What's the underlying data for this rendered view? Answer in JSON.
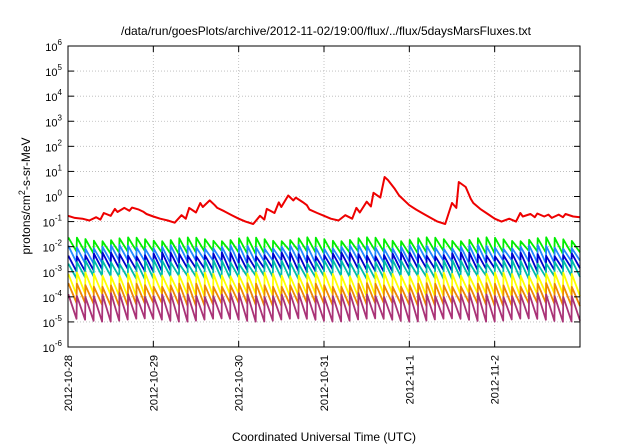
{
  "chart_data": {
    "type": "line",
    "title": "/data/run/goesPlots/archive/2012-11-02/19:00/flux/../flux/5daysMarsFluxes.txt",
    "xlabel": "Coordinated Universal Time (UTC)",
    "ylabel_prefix": "protons/cm",
    "ylabel_sup": "2",
    "ylabel_suffix": "-s-sr-MeV",
    "y_scale": "log",
    "ylim": [
      1e-06,
      1000000.0
    ],
    "xlim": [
      0,
      6
    ],
    "grid": true,
    "y_ticks": [
      {
        "base": "10",
        "exp": "-6",
        "value": 1e-06
      },
      {
        "base": "10",
        "exp": "-5",
        "value": 1e-05
      },
      {
        "base": "10",
        "exp": "-4",
        "value": 0.0001
      },
      {
        "base": "10",
        "exp": "-3",
        "value": 0.001
      },
      {
        "base": "10",
        "exp": "-2",
        "value": 0.01
      },
      {
        "base": "10",
        "exp": "-1",
        "value": 0.1
      },
      {
        "base": "10",
        "exp": "0",
        "value": 1
      },
      {
        "base": "10",
        "exp": "1",
        "value": 10
      },
      {
        "base": "10",
        "exp": "2",
        "value": 100
      },
      {
        "base": "10",
        "exp": "3",
        "value": 1000
      },
      {
        "base": "10",
        "exp": "4",
        "value": 10000
      },
      {
        "base": "10",
        "exp": "5",
        "value": 100000
      },
      {
        "base": "10",
        "exp": "6",
        "value": 1000000
      }
    ],
    "x_ticks": [
      {
        "label": "2012-10-28",
        "value": 0
      },
      {
        "label": "2012-10-29",
        "value": 1
      },
      {
        "label": "2012-10-30",
        "value": 2
      },
      {
        "label": "2012-10-31",
        "value": 3
      },
      {
        "label": "2012-11-1",
        "value": 4
      },
      {
        "label": "2012-11-2",
        "value": 5
      }
    ],
    "series": [
      {
        "color": "#ee0000",
        "x": [
          0.0,
          0.08,
          0.17,
          0.25,
          0.33,
          0.38,
          0.42,
          0.5,
          0.55,
          0.58,
          0.66,
          0.72,
          0.75,
          0.83,
          0.88,
          0.92,
          1.0,
          1.08,
          1.17,
          1.25,
          1.33,
          1.38,
          1.42,
          1.5,
          1.55,
          1.58,
          1.66,
          1.72,
          1.75,
          1.83,
          1.92,
          2.0,
          2.08,
          2.17,
          2.25,
          2.3,
          2.33,
          2.42,
          2.47,
          2.5,
          2.58,
          2.64,
          2.67,
          2.75,
          2.8,
          2.83,
          2.92,
          3.0,
          3.08,
          3.17,
          3.25,
          3.33,
          3.38,
          3.42,
          3.5,
          3.55,
          3.58,
          3.66,
          3.71,
          3.75,
          3.83,
          3.88,
          4.0,
          4.08,
          4.17,
          4.25,
          4.33,
          4.42,
          4.5,
          4.55,
          4.58,
          4.66,
          4.72,
          4.75,
          4.83,
          4.92,
          5.0,
          5.08,
          5.17,
          5.25,
          5.3,
          5.33,
          5.42,
          5.47,
          5.5,
          5.58,
          5.63,
          5.67,
          5.75,
          5.8,
          5.83,
          5.92,
          6.0
        ],
        "y": [
          0.17,
          0.14,
          0.13,
          0.11,
          0.15,
          0.12,
          0.22,
          0.17,
          0.32,
          0.24,
          0.35,
          0.27,
          0.36,
          0.3,
          0.25,
          0.2,
          0.16,
          0.13,
          0.11,
          0.09,
          0.18,
          0.13,
          0.35,
          0.23,
          0.55,
          0.38,
          0.7,
          0.45,
          0.35,
          0.26,
          0.18,
          0.13,
          0.1,
          0.08,
          0.17,
          0.12,
          0.32,
          0.22,
          0.58,
          0.38,
          1.1,
          0.7,
          0.9,
          0.6,
          0.45,
          0.3,
          0.22,
          0.17,
          0.13,
          0.11,
          0.18,
          0.13,
          0.35,
          0.23,
          0.62,
          0.4,
          1.4,
          0.9,
          6.0,
          4.5,
          2.0,
          1.1,
          0.45,
          0.3,
          0.2,
          0.14,
          0.1,
          0.08,
          0.55,
          0.35,
          3.8,
          2.4,
          0.8,
          0.55,
          0.32,
          0.2,
          0.13,
          0.1,
          0.13,
          0.1,
          0.22,
          0.16,
          0.2,
          0.15,
          0.21,
          0.16,
          0.19,
          0.14,
          0.19,
          0.15,
          0.2,
          0.16,
          0.15
        ]
      },
      {
        "color": "#00ee00",
        "base_hi": 0.02,
        "base_lo": 0.006
      },
      {
        "color": "#2288ff",
        "base_hi": 0.01,
        "base_lo": 0.0025
      },
      {
        "color": "#0000cc",
        "base_hi": 0.005,
        "base_lo": 0.0012
      },
      {
        "color": "#00bbaa",
        "base_hi": 0.0025,
        "base_lo": 0.0006
      },
      {
        "color": "#ffff00",
        "base_hi": 0.0008,
        "base_lo": 0.00012
      },
      {
        "color": "#ee8800",
        "base_hi": 0.0003,
        "base_lo": 5e-05
      },
      {
        "color": "#aa3377",
        "base_hi": 0.00012,
        "base_lo": 1.2e-05
      }
    ],
    "sawtooth_period_days": 0.1
  }
}
